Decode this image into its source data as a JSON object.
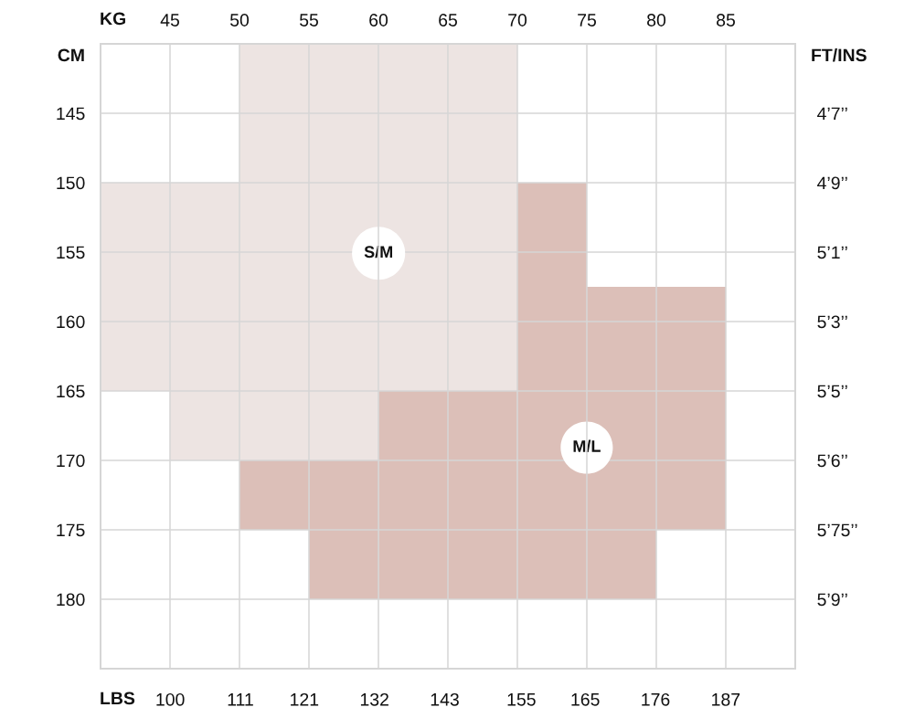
{
  "chart_data": {
    "type": "bar",
    "x": [
      94.5,
      105.4,
      116.3,
      127.2,
      138.1,
      148.9,
      159.8,
      170.7,
      181.6
    ],
    "series": [
      {
        "name": "S/M",
        "color": "#ede4e2",
        "base": [
          150,
          150,
          140,
          140,
          140,
          140,
          null,
          null,
          null
        ],
        "values": [
          15,
          20,
          30,
          30,
          25,
          25,
          null,
          null,
          null
        ]
      },
      {
        "name": "M/L",
        "color": "#dcbfb8",
        "base": [
          null,
          null,
          170,
          170,
          165,
          165,
          150,
          157.5,
          157.5
        ],
        "values": [
          null,
          null,
          5,
          10,
          15,
          15,
          30,
          22.5,
          17.5
        ]
      }
    ],
    "xlabel": "LBS",
    "xlim": [
      89.1,
      197.9
    ],
    "xticks": [
      100,
      111,
      121,
      132,
      143,
      155,
      165,
      176,
      187
    ],
    "x2label": "KG",
    "x2lim": [
      40,
      90
    ],
    "x2ticks": [
      45,
      50,
      55,
      60,
      65,
      70,
      75,
      80,
      85
    ],
    "ylabel": "CM",
    "ylim": [
      185,
      140
    ],
    "yticks": [
      145,
      150,
      155,
      160,
      165,
      170,
      175,
      180
    ],
    "y2label": "FT/INS",
    "y2_categories": [
      null,
      "4’7’’",
      "4’9’’",
      "5’1’’",
      "5’3’’",
      "5’5’’",
      "5’6’’",
      "5’75’’",
      "5’9’’",
      null
    ],
    "grid": true
  }
}
